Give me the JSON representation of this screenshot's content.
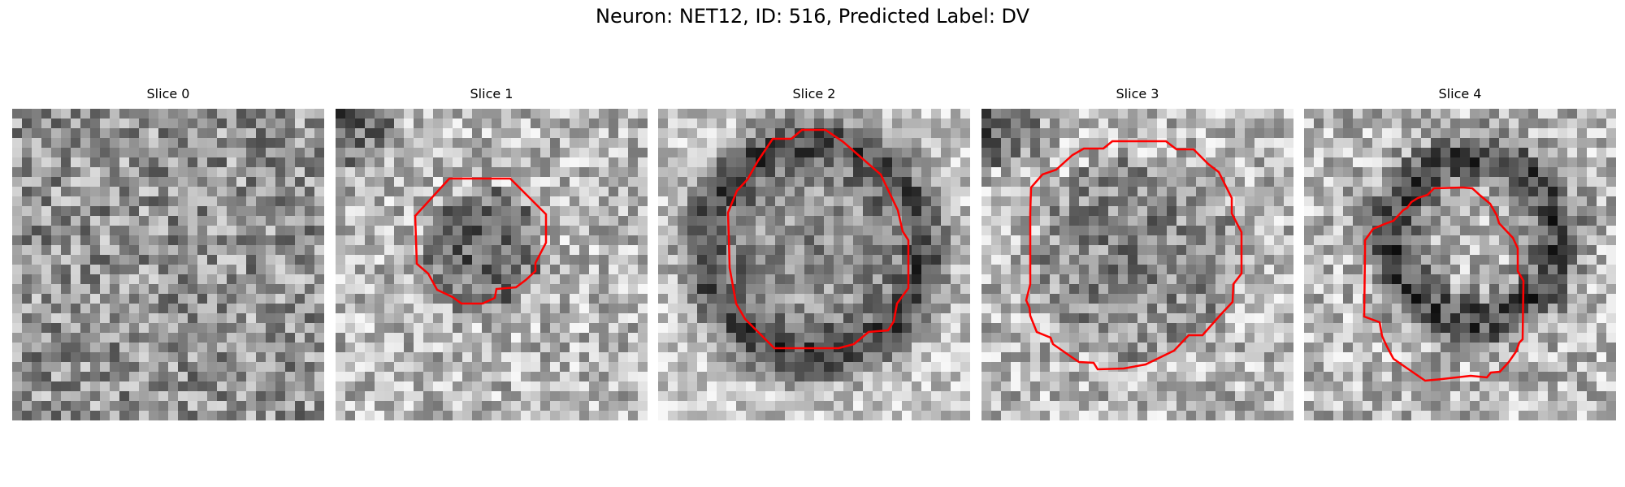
{
  "figure": {
    "title": "Neuron: NET12, ID: 516, Predicted Label: DV"
  },
  "colors": {
    "contour": "#ff0000",
    "background": "#ffffff"
  },
  "slices": [
    {
      "title": "Slice 0",
      "has_contour": false
    },
    {
      "title": "Slice 1",
      "has_contour": true
    },
    {
      "title": "Slice 2",
      "has_contour": true
    },
    {
      "title": "Slice 3",
      "has_contour": true
    },
    {
      "title": "Slice 4",
      "has_contour": true
    }
  ]
}
